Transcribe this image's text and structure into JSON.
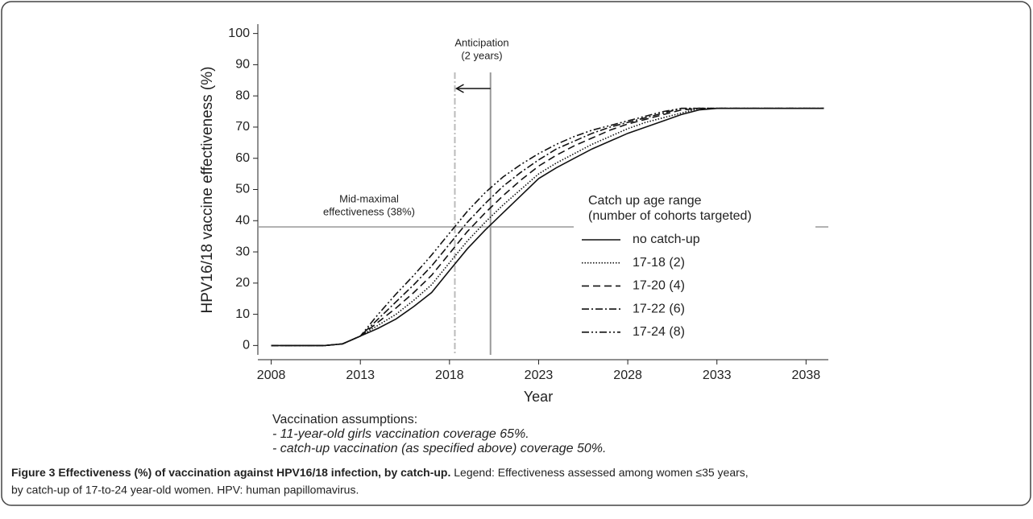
{
  "chart_data": {
    "type": "line",
    "ylabel": "HPV16/18 vaccine effectiveness (%)",
    "xlabel": "Year",
    "x": [
      2008,
      2009,
      2010,
      2011,
      2012,
      2013,
      2014,
      2015,
      2016,
      2017,
      2018,
      2019,
      2020,
      2021,
      2022,
      2023,
      2024,
      2025,
      2026,
      2027,
      2028,
      2029,
      2030,
      2031,
      2032,
      2033,
      2034,
      2035,
      2036,
      2037,
      2038,
      2039
    ],
    "series": [
      {
        "name": "no catch-up",
        "color": "#111111",
        "dash": "",
        "values": [
          0,
          0,
          0,
          0,
          0.5,
          3,
          5.5,
          8.5,
          12.5,
          17,
          24,
          31,
          37,
          42.5,
          48,
          53.5,
          57,
          60,
          63,
          65.5,
          68,
          70,
          72,
          74,
          75.5,
          76,
          76,
          76,
          76,
          76,
          76,
          76
        ]
      },
      {
        "name": "17-18 (2)",
        "color": "#111111",
        "dash": "1.5,2",
        "values": [
          0,
          0,
          0,
          0,
          0.5,
          3,
          6.5,
          10,
          14.5,
          19.5,
          26.5,
          33.5,
          39.5,
          45,
          50,
          55,
          58.5,
          61.5,
          64.5,
          67,
          69.5,
          71.5,
          73,
          74.5,
          76,
          76,
          76,
          76,
          76,
          76,
          76,
          76
        ]
      },
      {
        "name": "17-20 (4)",
        "color": "#111111",
        "dash": "9,5",
        "values": [
          0,
          0,
          0,
          0,
          0.5,
          3,
          7.5,
          12,
          17,
          22.5,
          29.5,
          36.5,
          42.5,
          48,
          53,
          57.5,
          61,
          64,
          66.5,
          69,
          71,
          72.5,
          74,
          75.5,
          76,
          76,
          76,
          76,
          76,
          76,
          76,
          76
        ]
      },
      {
        "name": "17-22 (6)",
        "color": "#111111",
        "dash": "9,3,2,3",
        "values": [
          0,
          0,
          0,
          0,
          0.5,
          3,
          8.5,
          14,
          19.5,
          25.5,
          32.5,
          39.5,
          45.5,
          51,
          55.5,
          59.5,
          63,
          65.5,
          68,
          70,
          71.5,
          73,
          74.5,
          76,
          76,
          76,
          76,
          76,
          76,
          76,
          76,
          76
        ]
      },
      {
        "name": "17-24 (8)",
        "color": "#111111",
        "dash": "9,3,2,3,2,3",
        "values": [
          0,
          0,
          0,
          0,
          0.5,
          3,
          10,
          16.5,
          22.5,
          29,
          36,
          43,
          49,
          54,
          58,
          61.5,
          64.5,
          67,
          69,
          70.5,
          72,
          73.5,
          75,
          76,
          76,
          76,
          76,
          76,
          76,
          76,
          76,
          76
        ]
      }
    ],
    "xlim": [
      2007.25,
      2039.25
    ],
    "xticks": [
      2008,
      2013,
      2018,
      2023,
      2028,
      2033,
      2038
    ],
    "ylim": [
      -3,
      103
    ],
    "yticks": [
      0,
      10,
      20,
      30,
      40,
      50,
      60,
      70,
      80,
      90,
      100
    ],
    "hlines": [
      38
    ],
    "vlines": [
      2020.3,
      2018.3
    ],
    "legend_title": [
      "Catch up age range",
      "(number of cohorts targeted)"
    ],
    "annotations": {
      "anticipation": [
        "Anticipation",
        "(2 years)"
      ],
      "midmax": [
        "Mid-maximal",
        "effectiveness (38%)"
      ]
    },
    "assumptions": [
      "Vaccination assumptions:",
      "- 11-year-old girls vaccination coverage 65%.",
      "- catch-up vaccination (as specified above) coverage 50%."
    ]
  },
  "caption": {
    "label": "Figure 3 Effectiveness (%) of vaccination against HPV16/18 infection, by catch-up.",
    "text": [
      " Legend: Effectiveness assessed among women ≤35 years,",
      "by catch-up of 17-to-24 year-old women. HPV: human papillomavirus."
    ]
  }
}
